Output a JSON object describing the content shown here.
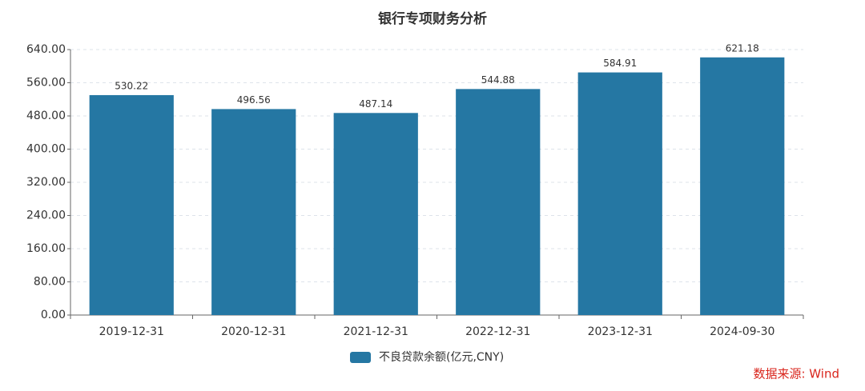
{
  "chart_data": {
    "type": "bar",
    "title": "银行专项财务分析",
    "categories": [
      "2019-12-31",
      "2020-12-31",
      "2021-12-31",
      "2022-12-31",
      "2023-12-31",
      "2024-09-30"
    ],
    "series": [
      {
        "name": "不良贷款余额(亿元,CNY)",
        "color": "#2577a3",
        "values": [
          530.22,
          496.56,
          487.14,
          544.88,
          584.91,
          621.18
        ]
      }
    ],
    "ylim": [
      0,
      640
    ],
    "yticks": [
      {
        "value": 0,
        "label": "0.00"
      },
      {
        "value": 80,
        "label": "80.00"
      },
      {
        "value": 160,
        "label": "160.00"
      },
      {
        "value": 240,
        "label": "240.00"
      },
      {
        "value": 320,
        "label": "320.00"
      },
      {
        "value": 400,
        "label": "400.00"
      },
      {
        "value": 480,
        "label": "480.00"
      },
      {
        "value": 560,
        "label": "560.00"
      },
      {
        "value": 640,
        "label": "640.00"
      }
    ],
    "grid": true,
    "source": "数据来源: Wind"
  }
}
